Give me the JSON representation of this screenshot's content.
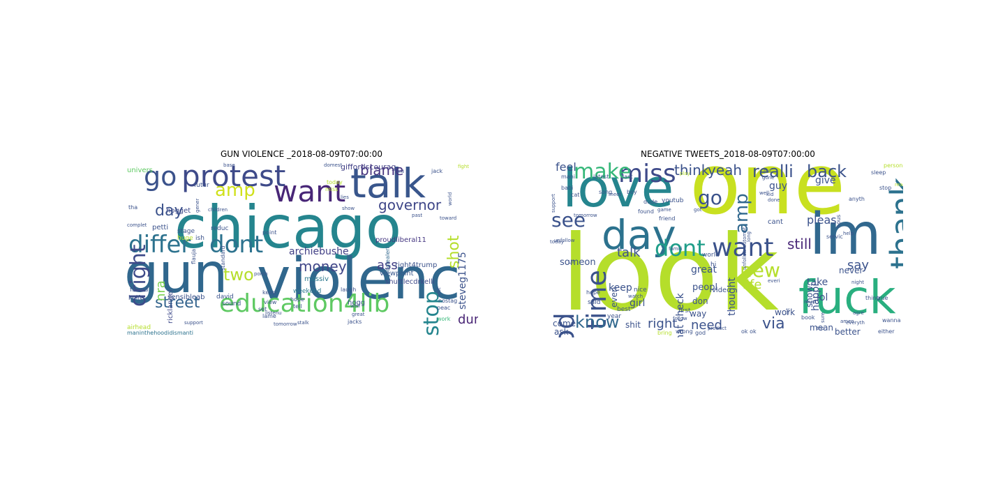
{
  "figure": {
    "left_title": "GUN VIOLENCE _2018-08-09T07:00:00",
    "right_title": "NEGATIVE TWEETS_2018-08-09T07:00:00"
  },
  "clouds": [
    {
      "id": "left",
      "words": [
        {
          "t": "chicago",
          "c": "#25858e"
        },
        {
          "t": "gun",
          "c": "#30678d"
        },
        {
          "t": "violenc",
          "c": "#30678d"
        },
        {
          "t": "talk",
          "c": "#39568c"
        },
        {
          "t": "protest",
          "c": "#3e4a89"
        },
        {
          "t": "want",
          "c": "#482677"
        },
        {
          "t": "go",
          "c": "#3b528b"
        },
        {
          "t": "differ",
          "c": "#2c728e"
        },
        {
          "t": "dont",
          "c": "#2c728e"
        },
        {
          "t": "education4lib",
          "c": "#5ec962"
        },
        {
          "t": "dright",
          "c": "#3e4a89"
        },
        {
          "t": "stop",
          "c": "#25858e"
        },
        {
          "t": "amp",
          "c": "#d0e11c"
        },
        {
          "t": "street",
          "c": "#33638d"
        },
        {
          "t": "money",
          "c": "#404688"
        },
        {
          "t": "governor",
          "c": "#3f4788"
        },
        {
          "t": "blame",
          "c": "#46337e"
        },
        {
          "t": "day",
          "c": "#3b528b"
        },
        {
          "t": "two",
          "c": "#b5de2b"
        },
        {
          "t": "shot",
          "c": "#b5de2b"
        },
        {
          "t": "nra",
          "c": "#7ad151"
        },
        {
          "t": "ass",
          "c": "#433e85"
        },
        {
          "t": "dumb",
          "c": "#482475"
        },
        {
          "t": "archiebushe",
          "c": "#424086"
        },
        {
          "t": "steveg1175",
          "c": "#3b528b"
        },
        {
          "t": "right4trump",
          "c": "#3b528b"
        },
        {
          "t": "shuttlecdrkelli",
          "c": "#3e4989"
        },
        {
          "t": "proudliberal11",
          "c": "#453781"
        },
        {
          "t": "giffordscourag",
          "c": "#424086"
        },
        {
          "t": "googlealert",
          "c": "#31688e"
        },
        {
          "t": "ricklangel",
          "c": "#3e4989"
        },
        {
          "t": "massiv",
          "c": "#2a788e"
        },
        {
          "t": "viewpoint",
          "c": "#38588c"
        },
        {
          "t": "sensibleab",
          "c": "#3b528b"
        },
        {
          "t": "maninthehoodidismanti",
          "c": "#2c728e"
        },
        {
          "t": "petti",
          "c": "#3b528b"
        },
        {
          "t": "hogget",
          "c": "#3e4a89"
        },
        {
          "t": "weekend",
          "c": "#2a788e"
        },
        {
          "t": "hogg",
          "c": "#3b528b"
        },
        {
          "t": "tell",
          "c": "#3b528b"
        },
        {
          "t": "airhead",
          "c": "#b5de2b"
        },
        {
          "t": "work",
          "c": "#35b779"
        },
        {
          "t": "peac",
          "c": "#3b528b"
        },
        {
          "t": "stage",
          "c": "#3b528b"
        },
        {
          "t": "point",
          "c": "#3b528b"
        },
        {
          "t": "univers",
          "c": "#5ec962"
        },
        {
          "t": "futur",
          "c": "#3b528b"
        },
        {
          "t": "keep",
          "c": "#3b528b"
        },
        {
          "t": "laugh",
          "c": "#3b528b"
        },
        {
          "t": "jack",
          "c": "#3b528b"
        },
        {
          "t": "huge",
          "c": "#b5de2b"
        },
        {
          "t": "david",
          "c": "#3b528b"
        },
        {
          "t": "sound",
          "c": "#3b528b"
        },
        {
          "t": "set",
          "c": "#3b528b"
        },
        {
          "t": "lame",
          "c": "#3b528b"
        },
        {
          "t": "view",
          "c": "#3b528b"
        },
        {
          "t": "hope",
          "c": "#3b528b"
        },
        {
          "t": "friend",
          "c": "#3b528b"
        },
        {
          "t": "knife",
          "c": "#3b528b"
        },
        {
          "t": "ish",
          "c": "#3b528b"
        },
        {
          "t": "standard",
          "c": "#3b528b"
        },
        {
          "t": "reduc",
          "c": "#3b528b"
        },
        {
          "t": "tha",
          "c": "#3b528b"
        },
        {
          "t": "today",
          "c": "#b5de2b"
        },
        {
          "t": "miss",
          "c": "#b5de2b"
        },
        {
          "t": "fight",
          "c": "#b5de2b"
        },
        {
          "t": "domest",
          "c": "#3b528b"
        },
        {
          "t": "base",
          "c": "#3b528b"
        },
        {
          "t": "toward",
          "c": "#3b528b"
        },
        {
          "t": "past",
          "c": "#3b528b"
        },
        {
          "t": "show",
          "c": "#3b528b"
        },
        {
          "t": "world",
          "c": "#3b528b"
        },
        {
          "t": "gener",
          "c": "#3b528b"
        },
        {
          "t": "children",
          "c": "#3b528b"
        },
        {
          "t": "porch",
          "c": "#3b528b"
        },
        {
          "t": "lies",
          "c": "#3b528b"
        },
        {
          "t": "jacks",
          "c": "#3b528b"
        },
        {
          "t": "stalk",
          "c": "#3b528b"
        },
        {
          "t": "listenu",
          "c": "#3b528b"
        },
        {
          "t": "tomorrow",
          "c": "#3b528b"
        },
        {
          "t": "support",
          "c": "#3b528b"
        },
        {
          "t": "complet",
          "c": "#3b528b"
        },
        {
          "t": "flauja",
          "c": "#3b528b"
        },
        {
          "t": "lost",
          "c": "#3b528b"
        },
        {
          "t": "nostag",
          "c": "#3b528b"
        },
        {
          "t": "well",
          "c": "#3b528b"
        },
        {
          "t": "great",
          "c": "#3b528b"
        },
        {
          "t": "held",
          "c": "#3b528b"
        },
        {
          "t": "last",
          "c": "#b5de2b"
        }
      ]
    },
    {
      "id": "right",
      "words": [
        {
          "t": "one",
          "c": "#c8e020"
        },
        {
          "t": "look",
          "c": "#b5de2b"
        },
        {
          "t": "love",
          "c": "#25858e"
        },
        {
          "t": "im",
          "c": "#31688e"
        },
        {
          "t": "fuck",
          "c": "#29af7f"
        },
        {
          "t": "day",
          "c": "#2c728e"
        },
        {
          "t": "want",
          "c": "#3b528b"
        },
        {
          "t": "miss",
          "c": "#3e4a89"
        },
        {
          "t": "make",
          "c": "#35b779"
        },
        {
          "t": "time",
          "c": "#3b528b"
        },
        {
          "t": "dont",
          "c": "#1f9e89"
        },
        {
          "t": "go",
          "c": "#3b528b"
        },
        {
          "t": "thank",
          "c": "#2c728e"
        },
        {
          "t": "good",
          "c": "#3b528b"
        },
        {
          "t": "know",
          "c": "#31688e"
        },
        {
          "t": "new",
          "c": "#b5de2b"
        },
        {
          "t": "amp",
          "c": "#31688e"
        },
        {
          "t": "see",
          "c": "#3b528b"
        },
        {
          "t": "realli",
          "c": "#3b528b"
        },
        {
          "t": "back",
          "c": "#3b528b"
        },
        {
          "t": "think",
          "c": "#3b528b"
        },
        {
          "t": "yeah",
          "c": "#3b528b"
        },
        {
          "t": "still",
          "c": "#482677"
        },
        {
          "t": "say",
          "c": "#3b528b"
        },
        {
          "t": "via",
          "c": "#3b528b"
        },
        {
          "t": "right",
          "c": "#3b528b"
        },
        {
          "t": "need",
          "c": "#3b528b"
        },
        {
          "t": "talk",
          "c": "#3b528b"
        },
        {
          "t": "life",
          "c": "#b5de2b"
        },
        {
          "t": "pleas",
          "c": "#3b528b"
        },
        {
          "t": "feel",
          "c": "#3b528b"
        },
        {
          "t": "guy",
          "c": "#3b528b"
        },
        {
          "t": "give",
          "c": "#3b528b"
        },
        {
          "t": "keep",
          "c": "#3b528b"
        },
        {
          "t": "take",
          "c": "#3b528b"
        },
        {
          "t": "lol",
          "c": "#3b528b"
        },
        {
          "t": "happi",
          "c": "#3b528b"
        },
        {
          "t": "great",
          "c": "#3b528b"
        },
        {
          "t": "girl",
          "c": "#3b528b"
        },
        {
          "t": "automat check",
          "c": "#3b528b"
        },
        {
          "t": "thought",
          "c": "#3b528b"
        },
        {
          "t": "someon",
          "c": "#3b528b"
        },
        {
          "t": "peopl",
          "c": "#3b528b"
        },
        {
          "t": "never",
          "c": "#3b528b"
        },
        {
          "t": "work",
          "c": "#3b528b"
        },
        {
          "t": "mean",
          "c": "#3b528b"
        },
        {
          "t": "better",
          "c": "#3b528b"
        },
        {
          "t": "shit",
          "c": "#3b528b"
        },
        {
          "t": "come",
          "c": "#3b528b"
        },
        {
          "t": "ask",
          "c": "#3b528b"
        },
        {
          "t": "way",
          "c": "#3b528b"
        },
        {
          "t": "don",
          "c": "#3b528b"
        },
        {
          "t": "show",
          "c": "#3b528b"
        },
        {
          "t": "even",
          "c": "#3b528b"
        },
        {
          "t": "cant",
          "c": "#3b528b"
        },
        {
          "t": "video",
          "c": "#3b528b"
        },
        {
          "t": "said",
          "c": "#3b528b"
        },
        {
          "t": "hope",
          "c": "#3b528b"
        },
        {
          "t": "ur",
          "c": "#3b528b"
        },
        {
          "t": "person",
          "c": "#b5de2b"
        },
        {
          "t": "sleep",
          "c": "#3b528b"
        },
        {
          "t": "latest",
          "c": "#3b528b"
        },
        {
          "t": "last",
          "c": "#3b528b"
        },
        {
          "t": "unfollow automat",
          "c": "#3b528b"
        },
        {
          "t": "friend",
          "c": "#3b528b"
        },
        {
          "t": "youtub",
          "c": "#3b528b"
        },
        {
          "t": "world",
          "c": "#3b528b"
        },
        {
          "t": "hi",
          "c": "#3b528b"
        },
        {
          "t": "nice",
          "c": "#3b528b"
        },
        {
          "t": "first",
          "c": "#3b528b"
        },
        {
          "t": "best",
          "c": "#3b528b"
        },
        {
          "t": "year",
          "c": "#3b528b"
        },
        {
          "t": "book",
          "c": "#3b528b"
        },
        {
          "t": "thing",
          "c": "#3b528b"
        },
        {
          "t": "true",
          "c": "#3b528b"
        },
        {
          "t": "wanna",
          "c": "#3b528b"
        },
        {
          "t": "ok ok",
          "c": "#3b528b"
        },
        {
          "t": "god",
          "c": "#3b528b"
        },
        {
          "t": "wrong",
          "c": "#3b528b"
        },
        {
          "t": "bring",
          "c": "#b5de2b"
        },
        {
          "t": "amen",
          "c": "#3b528b"
        },
        {
          "t": "stop",
          "c": "#3b528b"
        },
        {
          "t": "anyth",
          "c": "#3b528b"
        },
        {
          "t": "hous",
          "c": "#3b528b"
        },
        {
          "t": "servic",
          "c": "#3b528b"
        },
        {
          "t": "found",
          "c": "#3b528b"
        },
        {
          "t": "boy",
          "c": "#3b528b"
        },
        {
          "t": "babi",
          "c": "#3b528b"
        },
        {
          "t": "cat",
          "c": "#3b528b"
        },
        {
          "t": "song",
          "c": "#3b528b"
        },
        {
          "t": "mani",
          "c": "#3b528b"
        },
        {
          "t": "support",
          "c": "#3b528b"
        },
        {
          "t": "tomorrow",
          "c": "#3b528b"
        },
        {
          "t": "play",
          "c": "#b5de2b"
        },
        {
          "t": "kid",
          "c": "#3b528b"
        },
        {
          "t": "done",
          "c": "#3b528b"
        },
        {
          "t": "well",
          "c": "#3b528b"
        },
        {
          "t": "game",
          "c": "#3b528b"
        },
        {
          "t": "dude",
          "c": "#3b528b"
        },
        {
          "t": "famili",
          "c": "#3b528b"
        },
        {
          "t": "meet",
          "c": "#3b528b"
        },
        {
          "t": "watch",
          "c": "#3b528b"
        },
        {
          "t": "follow",
          "c": "#3b528b"
        },
        {
          "t": "product",
          "c": "#3b528b"
        },
        {
          "t": "must",
          "c": "#3b528b"
        },
        {
          "t": "night",
          "c": "#3b528b"
        },
        {
          "t": "help",
          "c": "#3b528b"
        },
        {
          "t": "either",
          "c": "#3b528b"
        },
        {
          "t": "agre",
          "c": "#3b528b"
        },
        {
          "t": "everyth",
          "c": "#3b528b"
        },
        {
          "t": "tho",
          "c": "#3b528b"
        },
        {
          "t": "today",
          "c": "#3b528b"
        },
        {
          "t": "long",
          "c": "#3b528b"
        },
        {
          "t": "unfollow",
          "c": "#3b528b"
        },
        {
          "t": "everi",
          "c": "#3b528b"
        },
        {
          "t": "let",
          "c": "#3b528b"
        },
        {
          "t": "sure",
          "c": "#3b528b"
        },
        {
          "t": "gone",
          "c": "#3b528b"
        },
        {
          "t": "put",
          "c": "#3b528b"
        },
        {
          "t": "got",
          "c": "#3b528b"
        },
        {
          "t": "read",
          "c": "#b5de2b"
        },
        {
          "t": "wish",
          "c": "#3b528b"
        }
      ]
    }
  ]
}
